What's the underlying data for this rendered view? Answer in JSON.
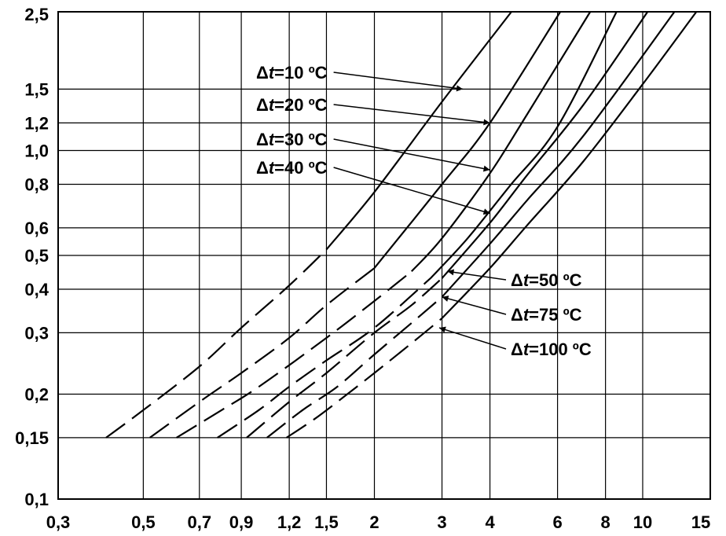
{
  "chart_data": {
    "type": "line",
    "x_scale": "log",
    "y_scale": "log",
    "xlim": [
      0.3,
      15
    ],
    "ylim": [
      0.1,
      2.5
    ],
    "grid": true,
    "x_ticks": [
      "0,3",
      "0,5",
      "0,7",
      "0,9",
      "1,2",
      "1,5",
      "2",
      "3",
      "4",
      "6",
      "8",
      "10",
      "15"
    ],
    "x_tick_values": [
      0.3,
      0.5,
      0.7,
      0.9,
      1.2,
      1.5,
      2,
      3,
      4,
      6,
      8,
      10,
      15
    ],
    "y_ticks": [
      "2,5",
      "1,5",
      "1,2",
      "1,0",
      "0,8",
      "0,6",
      "0,5",
      "0,4",
      "0,3",
      "0,2",
      "0,15",
      "0,1"
    ],
    "y_tick_values": [
      2.5,
      1.5,
      1.2,
      1.0,
      0.8,
      0.6,
      0.5,
      0.4,
      0.3,
      0.2,
      0.15,
      0.1
    ],
    "series": [
      {
        "name": "Δt=10 ºC",
        "dashed_until_x": 1.5,
        "x": [
          0.4,
          0.5,
          0.7,
          0.9,
          1.2,
          1.5,
          2,
          3,
          4.55
        ],
        "y": [
          0.15,
          0.18,
          0.24,
          0.31,
          0.41,
          0.52,
          0.76,
          1.38,
          2.5
        ]
      },
      {
        "name": "Δt=20 ºC",
        "dashed_until_x": 2,
        "x": [
          0.52,
          0.7,
          0.9,
          1.2,
          1.5,
          2,
          3,
          4,
          6.1
        ],
        "y": [
          0.15,
          0.19,
          0.23,
          0.29,
          0.36,
          0.46,
          0.8,
          1.2,
          2.5
        ]
      },
      {
        "name": "Δt=30 ºC",
        "dashed_until_x": 2.5,
        "x": [
          0.61,
          0.8,
          1.0,
          1.5,
          2,
          2.5,
          3,
          4,
          5,
          7.3
        ],
        "y": [
          0.15,
          0.18,
          0.21,
          0.29,
          0.37,
          0.45,
          0.56,
          0.86,
          1.27,
          2.5
        ]
      },
      {
        "name": "Δt=40 ºC",
        "dashed_until_x": 2.8,
        "x": [
          0.78,
          1.0,
          1.2,
          1.5,
          2,
          2.8,
          3.5,
          4.5,
          6,
          8.55
        ],
        "y": [
          0.15,
          0.18,
          0.21,
          0.25,
          0.31,
          0.43,
          0.56,
          0.79,
          1.17,
          2.5
        ]
      },
      {
        "name": "Δt=50 ºC",
        "dashed_until_x": 3.0,
        "x": [
          0.93,
          1.2,
          1.5,
          2,
          2.5,
          3,
          4,
          5,
          7,
          10.3
        ],
        "y": [
          0.15,
          0.19,
          0.23,
          0.3,
          0.36,
          0.43,
          0.62,
          0.85,
          1.35,
          2.5
        ]
      },
      {
        "name": "Δt=75 ºC",
        "dashed_until_x": 3.0,
        "x": [
          1.05,
          1.3,
          1.6,
          2,
          2.5,
          3,
          4,
          5,
          7,
          12.1
        ],
        "y": [
          0.15,
          0.18,
          0.21,
          0.26,
          0.32,
          0.38,
          0.54,
          0.72,
          1.1,
          2.5
        ]
      },
      {
        "name": "Δt=100 ºC",
        "dashed_until_x": 3.0,
        "x": [
          1.18,
          1.4,
          1.7,
          2,
          2.5,
          3,
          4,
          5,
          7,
          10,
          13.8
        ],
        "y": [
          0.15,
          0.17,
          0.2,
          0.23,
          0.28,
          0.33,
          0.46,
          0.61,
          0.93,
          1.55,
          2.5
        ]
      }
    ],
    "annotations": [
      {
        "series": 0,
        "lines": [
          "Δ",
          "t",
          "=10 ºC"
        ],
        "arrow_to": [
          3.4,
          1.5
        ]
      },
      {
        "series": 1,
        "lines": [
          "Δ",
          "t",
          "=20 ºC"
        ],
        "arrow_to": [
          4.0,
          1.2
        ]
      },
      {
        "series": 2,
        "lines": [
          "Δ",
          "t",
          "=30 ºC"
        ],
        "arrow_to": [
          4.0,
          0.88
        ]
      },
      {
        "series": 3,
        "lines": [
          "Δ",
          "t",
          "=40 ºC"
        ],
        "arrow_to": [
          4.0,
          0.66
        ]
      },
      {
        "series": 4,
        "lines": [
          "Δ",
          "t",
          "=50 ºC"
        ],
        "arrow_to": [
          3.1,
          0.45
        ]
      },
      {
        "series": 5,
        "lines": [
          "Δ",
          "t",
          "=75 ºC"
        ],
        "arrow_to": [
          3.0,
          0.38
        ]
      },
      {
        "series": 6,
        "lines": [
          "Δ",
          "t",
          "=100 ºC"
        ],
        "arrow_to": [
          2.95,
          0.31
        ]
      }
    ]
  }
}
